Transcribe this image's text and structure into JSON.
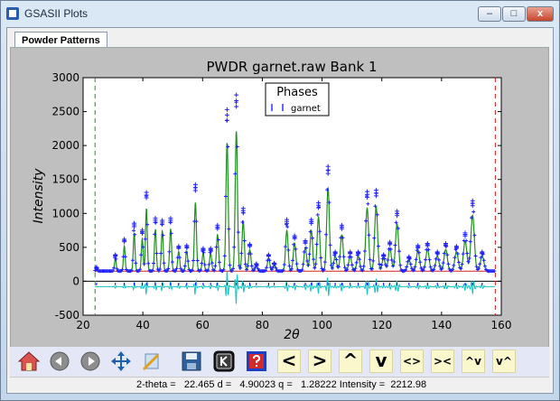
{
  "window": {
    "title": "GSASII Plots",
    "minimize_label": "–",
    "maximize_label": "□",
    "close_label": "x"
  },
  "tabs": [
    {
      "label": "Powder Patterns"
    }
  ],
  "toolbar": {
    "buttons": [
      {
        "name": "home-icon"
      },
      {
        "name": "back-icon"
      },
      {
        "name": "forward-icon"
      },
      {
        "name": "pan-icon"
      },
      {
        "name": "configure-icon"
      },
      {
        "name": "save-icon"
      },
      {
        "name": "key-icon"
      },
      {
        "name": "help-icon"
      }
    ],
    "text_buttons": [
      {
        "name": "shift-left-button",
        "label": "<"
      },
      {
        "name": "shift-right-button",
        "label": ">"
      },
      {
        "name": "shift-up-button",
        "label": "^"
      },
      {
        "name": "shift-down-button",
        "label": "v"
      },
      {
        "name": "expand-x-button",
        "label": "<>"
      },
      {
        "name": "contract-x-button",
        "label": "><"
      },
      {
        "name": "expand-y-button",
        "label": "^v"
      },
      {
        "name": "contract-y-button",
        "label": "v^"
      }
    ]
  },
  "status": {
    "text": "2-theta =   22.465 d =   4.90023 q =   1.28222 Intensity =  2212.98"
  },
  "chart_data": {
    "type": "line",
    "title": "PWDR garnet.raw Bank 1",
    "xlabel": "2θ",
    "ylabel": "Intensity",
    "xlim": [
      20,
      160
    ],
    "ylim": [
      -500,
      3000
    ],
    "xticks": [
      20,
      40,
      60,
      80,
      100,
      120,
      140,
      160
    ],
    "yticks": [
      -500,
      0,
      500,
      1000,
      1500,
      2000,
      2500,
      3000
    ],
    "legend": {
      "title": "Phases",
      "entries": [
        "garnet"
      ],
      "position": "top-center"
    },
    "vlines": [
      {
        "x": 24,
        "color": "#2e8b2e"
      },
      {
        "x": 158,
        "color": "#d62020"
      }
    ],
    "background_level": 150,
    "difference_offset": -80,
    "colors": {
      "observed": "#2020ff",
      "calculated": "#1f8f1f",
      "background": "#d62020",
      "difference": "#19c3c3",
      "reflections": "#0000ff"
    },
    "peaks": [
      {
        "x": 24.5,
        "obs": 200
      },
      {
        "x": 30.8,
        "obs": 380
      },
      {
        "x": 33.8,
        "obs": 600
      },
      {
        "x": 37.1,
        "obs": 830
      },
      {
        "x": 39.8,
        "obs": 730
      },
      {
        "x": 41.2,
        "obs": 1270
      },
      {
        "x": 44.2,
        "obs": 900
      },
      {
        "x": 46.5,
        "obs": 870
      },
      {
        "x": 49.3,
        "obs": 900
      },
      {
        "x": 52.0,
        "obs": 500
      },
      {
        "x": 54.7,
        "obs": 510
      },
      {
        "x": 57.6,
        "obs": 1380
      },
      {
        "x": 60.2,
        "obs": 470
      },
      {
        "x": 62.7,
        "obs": 470
      },
      {
        "x": 65.0,
        "obs": 800
      },
      {
        "x": 68.2,
        "obs": 2450
      },
      {
        "x": 71.3,
        "obs": 2660
      },
      {
        "x": 73.6,
        "obs": 1040
      },
      {
        "x": 75.8,
        "obs": 530
      },
      {
        "x": 78.0,
        "obs": 250
      },
      {
        "x": 82.1,
        "obs": 380
      },
      {
        "x": 84.0,
        "obs": 260
      },
      {
        "x": 88.2,
        "obs": 880
      },
      {
        "x": 90.8,
        "obs": 650
      },
      {
        "x": 94.4,
        "obs": 580
      },
      {
        "x": 96.4,
        "obs": 880
      },
      {
        "x": 98.8,
        "obs": 1120
      },
      {
        "x": 102.0,
        "obs": 1640
      },
      {
        "x": 104.4,
        "obs": 420
      },
      {
        "x": 106.6,
        "obs": 800
      },
      {
        "x": 109.4,
        "obs": 420
      },
      {
        "x": 112.1,
        "obs": 420
      },
      {
        "x": 115.1,
        "obs": 1280
      },
      {
        "x": 118.1,
        "obs": 1300
      },
      {
        "x": 120.6,
        "obs": 380
      },
      {
        "x": 122.7,
        "obs": 560
      },
      {
        "x": 125.1,
        "obs": 1000
      },
      {
        "x": 129.1,
        "obs": 350
      },
      {
        "x": 132.1,
        "obs": 510
      },
      {
        "x": 135.3,
        "obs": 540
      },
      {
        "x": 138.6,
        "obs": 420
      },
      {
        "x": 141.4,
        "obs": 540
      },
      {
        "x": 145.0,
        "obs": 500
      },
      {
        "x": 147.9,
        "obs": 690
      },
      {
        "x": 150.4,
        "obs": 1150
      },
      {
        "x": 153.6,
        "obs": 420
      }
    ]
  }
}
